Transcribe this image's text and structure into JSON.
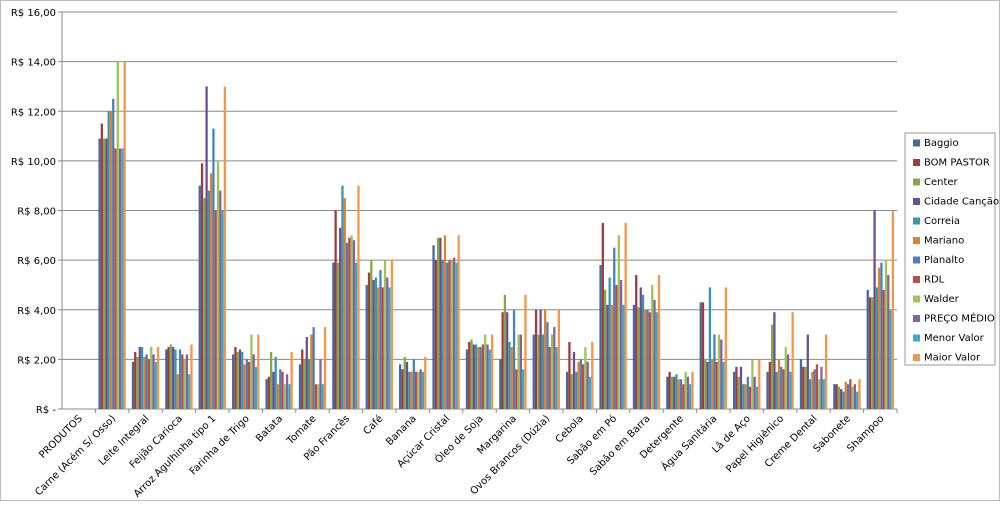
{
  "chart_data": {
    "type": "bar",
    "categories": [
      "PRODUTOS",
      "Carne (Acém S/ Osso)",
      "Leite Integral",
      "Feijão Carioca",
      "Arroz Agulhinha tipo 1",
      "Farinha de Trigo",
      "Batata",
      "Tomate",
      "Pão Francês",
      "Café",
      "Banana",
      "Açúcar Cristal",
      "Óleo de Soja",
      "Margarina",
      "Ovos Brancos (Dúzia)",
      "Cebola",
      "Sabão em Pó",
      "Sabão em Barra",
      "Detergente",
      "Água Sanitária",
      "Lã de Aço",
      "Papel Higiênico",
      "Creme Dental",
      "Sabonete",
      "Shampoo"
    ],
    "series": [
      {
        "name": "Baggio",
        "color": "#3f6aa6",
        "values": [
          null,
          10.9,
          1.9,
          2.4,
          9.0,
          2.2,
          1.2,
          1.8,
          5.9,
          5.0,
          1.8,
          6.6,
          2.4,
          2.0,
          3.0,
          1.5,
          5.8,
          4.2,
          1.3,
          4.3,
          1.5,
          1.5,
          2.0,
          1.0,
          4.8
        ]
      },
      {
        "name": "BOM PASTOR",
        "color": "#a23a37",
        "values": [
          null,
          11.5,
          2.3,
          2.5,
          9.9,
          2.5,
          1.3,
          2.4,
          8.0,
          5.5,
          1.6,
          6.0,
          2.7,
          3.9,
          4.0,
          2.7,
          7.5,
          5.4,
          1.5,
          4.3,
          1.7,
          1.9,
          1.7,
          1.0,
          4.5
        ]
      },
      {
        "name": "Center",
        "color": "#85a844",
        "values": [
          null,
          10.9,
          2.1,
          2.6,
          8.5,
          2.3,
          2.3,
          2.0,
          5.9,
          6.0,
          2.1,
          6.9,
          2.8,
          4.6,
          3.0,
          1.4,
          4.8,
          4.1,
          1.3,
          2.0,
          1.3,
          3.4,
          1.7,
          0.9,
          4.5
        ]
      },
      {
        "name": "Cidade Canção",
        "color": "#6b4e92",
        "values": [
          null,
          10.9,
          2.5,
          2.5,
          13.0,
          2.4,
          1.5,
          2.9,
          7.3,
          5.2,
          1.9,
          6.9,
          2.6,
          3.9,
          4.0,
          2.3,
          4.2,
          4.9,
          1.3,
          1.9,
          1.7,
          3.9,
          3.0,
          0.8,
          8.0
        ]
      },
      {
        "name": "Correia",
        "color": "#3896ae",
        "values": [
          null,
          12.0,
          2.5,
          2.4,
          8.8,
          2.3,
          2.1,
          2.0,
          9.0,
          5.3,
          1.5,
          6.0,
          2.6,
          2.7,
          3.0,
          1.5,
          5.3,
          4.6,
          1.4,
          4.9,
          1.0,
          1.5,
          1.2,
          0.7,
          4.9
        ]
      },
      {
        "name": "Mariano",
        "color": "#e0812d",
        "values": [
          null,
          12.0,
          2.1,
          1.4,
          9.5,
          1.8,
          1.0,
          3.0,
          8.5,
          4.9,
          1.5,
          7.0,
          2.5,
          2.5,
          4.0,
          1.9,
          4.2,
          4.0,
          1.2,
          2.0,
          1.0,
          2.0,
          1.5,
          1.1,
          5.7
        ]
      },
      {
        "name": "Planalto",
        "color": "#4a7fc4",
        "values": [
          null,
          12.5,
          2.2,
          2.4,
          11.3,
          2.0,
          1.6,
          3.3,
          6.7,
          5.6,
          2.0,
          5.9,
          2.5,
          4.0,
          3.5,
          2.0,
          6.5,
          4.0,
          1.2,
          3.0,
          1.3,
          1.7,
          1.6,
          1.0,
          5.9
        ]
      },
      {
        "name": "RDL",
        "color": "#c24a45",
        "values": [
          null,
          10.5,
          2.0,
          2.2,
          8.0,
          1.9,
          1.5,
          1.0,
          6.9,
          4.9,
          1.5,
          6.0,
          2.6,
          1.6,
          2.5,
          1.8,
          5.0,
          3.9,
          1.0,
          1.9,
          0.9,
          1.6,
          1.8,
          1.2,
          4.8
        ]
      },
      {
        "name": "Walder",
        "color": "#9dc455",
        "values": [
          null,
          14.0,
          2.5,
          2.0,
          10.0,
          3.0,
          1.0,
          1.0,
          7.0,
          6.0,
          1.5,
          6.0,
          3.0,
          3.0,
          3.0,
          2.5,
          7.0,
          5.0,
          1.5,
          3.0,
          2.0,
          2.5,
          1.2,
          0.9,
          6.0
        ]
      },
      {
        "name": "PREÇO MÉDIO",
        "color": "#7f62a8",
        "values": [
          null,
          10.5,
          2.2,
          2.2,
          8.8,
          2.2,
          1.4,
          2.0,
          6.8,
          5.3,
          1.6,
          6.1,
          2.6,
          3.0,
          3.3,
          1.9,
          5.2,
          4.4,
          1.3,
          2.8,
          1.3,
          2.2,
          1.7,
          1.0,
          5.4
        ]
      },
      {
        "name": "Menor Valor",
        "color": "#3aaacc",
        "values": [
          null,
          10.5,
          1.9,
          1.4,
          8.0,
          1.7,
          1.0,
          1.0,
          5.9,
          4.9,
          1.5,
          5.9,
          2.4,
          1.6,
          2.5,
          1.3,
          4.2,
          3.9,
          1.0,
          1.9,
          0.9,
          1.5,
          1.2,
          0.7,
          4.0
        ]
      },
      {
        "name": "Maior Valor",
        "color": "#f79646",
        "values": [
          null,
          14.0,
          2.5,
          2.6,
          13.0,
          3.0,
          2.3,
          3.3,
          9.0,
          6.0,
          2.1,
          7.0,
          3.0,
          4.6,
          4.0,
          2.7,
          7.5,
          5.4,
          1.5,
          4.9,
          2.0,
          3.9,
          3.0,
          1.2,
          8.0
        ]
      }
    ],
    "ylim": [
      0,
      16
    ],
    "yticks": [
      {
        "value": 0,
        "label": "R$ -"
      },
      {
        "value": 2,
        "label": "R$ 2,00"
      },
      {
        "value": 4,
        "label": "R$ 4,00"
      },
      {
        "value": 6,
        "label": "R$ 6,00"
      },
      {
        "value": 8,
        "label": "R$ 8,00"
      },
      {
        "value": 10,
        "label": "R$ 10,00"
      },
      {
        "value": 12,
        "label": "R$ 12,00"
      },
      {
        "value": 14,
        "label": "R$ 14,00"
      },
      {
        "value": 16,
        "label": "R$ 16,00"
      }
    ],
    "grid": true
  }
}
